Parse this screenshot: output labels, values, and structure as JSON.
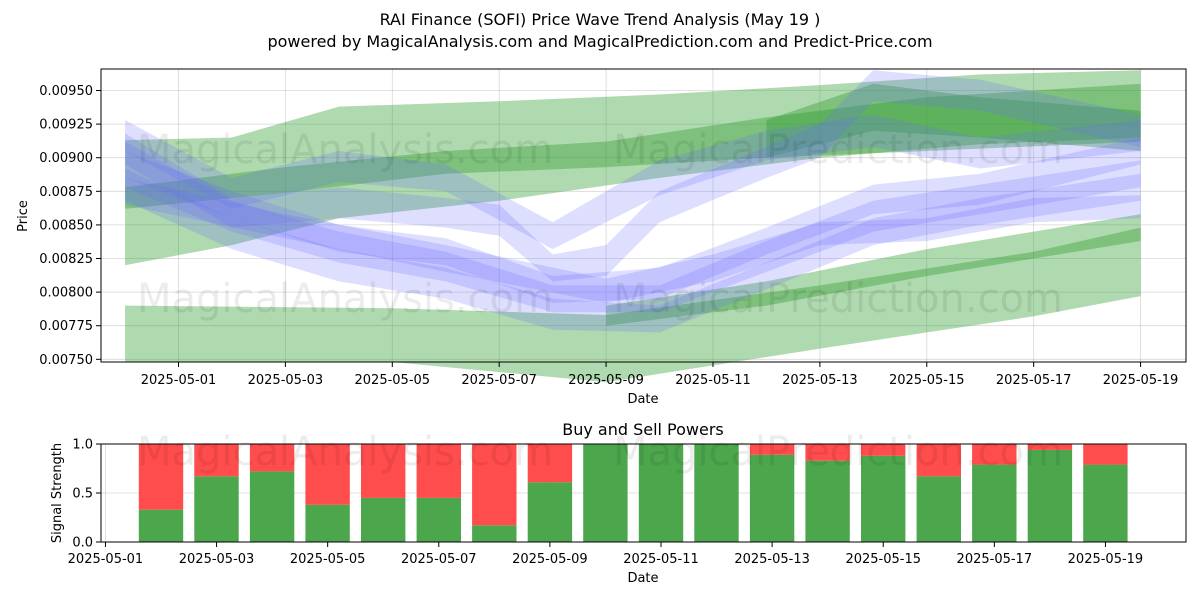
{
  "title_line1": "RAI Finance (SOFI) Price Wave Trend Analysis (May 19 )",
  "title_line2": "powered by MagicalAnalysis.com and MagicalPrediction.com and Predict-Price.com",
  "watermarks": [
    "MagicalAnalysis.com",
    "MagicalPrediction.com"
  ],
  "chart_data": [
    {
      "type": "line",
      "title": "",
      "xlabel": "Date",
      "ylabel": "Price",
      "x_range": [
        "2025-04-29",
        "2025-05-20"
      ],
      "ylim": [
        0.00748,
        0.00966
      ],
      "x_ticks": [
        "2025-05-01",
        "2025-05-03",
        "2025-05-05",
        "2025-05-07",
        "2025-05-09",
        "2025-05-11",
        "2025-05-13",
        "2025-05-15",
        "2025-05-17",
        "2025-05-19"
      ],
      "y_ticks": [
        0.0075,
        0.00775,
        0.008,
        0.00825,
        0.0085,
        0.00875,
        0.009,
        0.00925,
        0.0095
      ],
      "grid": true,
      "green_bands": [
        {
          "x": [
            "2025-04-30",
            "2025-05-02",
            "2025-05-04",
            "2025-05-07",
            "2025-05-10",
            "2025-05-13",
            "2025-05-16",
            "2025-05-19"
          ],
          "upper": [
            0.00913,
            0.00915,
            0.00938,
            0.00942,
            0.00947,
            0.00954,
            0.00962,
            0.00965
          ],
          "lower": [
            0.0082,
            0.00835,
            0.00855,
            0.00868,
            0.00885,
            0.009,
            0.0091,
            0.00915
          ]
        },
        {
          "x": [
            "2025-04-30",
            "2025-05-03",
            "2025-05-06",
            "2025-05-09",
            "2025-05-12",
            "2025-05-15",
            "2025-05-19"
          ],
          "upper": [
            0.00878,
            0.00893,
            0.00905,
            0.00912,
            0.0093,
            0.00945,
            0.00955
          ],
          "lower": [
            0.00862,
            0.00874,
            0.00888,
            0.00893,
            0.009,
            0.00905,
            0.00912
          ]
        },
        {
          "x": [
            "2025-04-30",
            "2025-05-05",
            "2025-05-09",
            "2025-05-13",
            "2025-05-17",
            "2025-05-19"
          ],
          "upper": [
            0.0079,
            0.00788,
            0.00783,
            0.00805,
            0.0083,
            0.00848
          ],
          "lower": [
            0.00748,
            0.00748,
            0.00733,
            0.00758,
            0.00782,
            0.00797
          ]
        },
        {
          "x": [
            "2025-05-09",
            "2025-05-12",
            "2025-05-15",
            "2025-05-19"
          ],
          "upper": [
            0.0079,
            0.00808,
            0.00832,
            0.00858
          ],
          "lower": [
            0.00775,
            0.0079,
            0.00812,
            0.00838
          ]
        },
        {
          "x": [
            "2025-05-12",
            "2025-05-14",
            "2025-05-16",
            "2025-05-19"
          ],
          "upper": [
            0.00928,
            0.00955,
            0.00945,
            0.00935
          ],
          "lower": [
            0.009,
            0.0092,
            0.00915,
            0.00905
          ]
        }
      ],
      "blue_bands": [
        {
          "x": [
            "2025-04-30",
            "2025-05-02",
            "2025-05-04",
            "2025-05-06",
            "2025-05-08",
            "2025-05-10",
            "2025-05-12",
            "2025-05-14",
            "2025-05-16",
            "2025-05-19"
          ],
          "upper": [
            0.00912,
            0.00868,
            0.00845,
            0.0083,
            0.00805,
            0.00805,
            0.00838,
            0.00868,
            0.0088,
            0.00898
          ],
          "lower": [
            0.00878,
            0.00845,
            0.00822,
            0.00808,
            0.00785,
            0.00785,
            0.00815,
            0.00845,
            0.00858,
            0.00878
          ]
        },
        {
          "x": [
            "2025-04-30",
            "2025-05-02",
            "2025-05-04",
            "2025-05-06",
            "2025-05-08",
            "2025-05-10",
            "2025-05-12",
            "2025-05-14",
            "2025-05-16",
            "2025-05-19"
          ],
          "upper": [
            0.00892,
            0.00855,
            0.00832,
            0.00818,
            0.00795,
            0.0079,
            0.00822,
            0.00855,
            0.0087,
            0.00888
          ],
          "lower": [
            0.00868,
            0.00832,
            0.00808,
            0.00795,
            0.00772,
            0.0077,
            0.00802,
            0.00835,
            0.0085,
            0.00868
          ]
        },
        {
          "x": [
            "2025-04-30",
            "2025-05-02",
            "2025-05-04",
            "2025-05-06",
            "2025-05-08",
            "2025-05-10",
            "2025-05-12",
            "2025-05-14",
            "2025-05-16",
            "2025-05-19"
          ],
          "upper": [
            0.00928,
            0.00885,
            0.00905,
            0.00895,
            0.00852,
            0.00898,
            0.0092,
            0.00932,
            0.00915,
            0.00928
          ],
          "lower": [
            0.00905,
            0.00862,
            0.00882,
            0.00875,
            0.00832,
            0.00872,
            0.00898,
            0.00908,
            0.00892,
            0.00905
          ]
        },
        {
          "x": [
            "2025-04-30",
            "2025-05-02",
            "2025-05-04",
            "2025-05-06",
            "2025-05-07",
            "2025-05-08",
            "2025-05-09",
            "2025-05-10",
            "2025-05-12",
            "2025-05-13",
            "2025-05-14",
            "2025-05-16",
            "2025-05-19"
          ],
          "upper": [
            0.00918,
            0.0087,
            0.00878,
            0.0087,
            0.00865,
            0.00828,
            0.00835,
            0.00875,
            0.00908,
            0.00925,
            0.00965,
            0.00958,
            0.00932
          ],
          "lower": [
            0.00895,
            0.00848,
            0.00855,
            0.00848,
            0.00842,
            0.00808,
            0.00812,
            0.00852,
            0.00885,
            0.009,
            0.00942,
            0.00935,
            0.00908
          ]
        },
        {
          "x": [
            "2025-04-30",
            "2025-05-03",
            "2025-05-06",
            "2025-05-09",
            "2025-05-11",
            "2025-05-13",
            "2025-05-15",
            "2025-05-17",
            "2025-05-19"
          ],
          "upper": [
            0.00885,
            0.00858,
            0.00835,
            0.0081,
            0.00828,
            0.00852,
            0.00855,
            0.0087,
            0.00872
          ],
          "lower": [
            0.00865,
            0.0084,
            0.00815,
            0.00792,
            0.00808,
            0.00835,
            0.00838,
            0.00852,
            0.00855
          ]
        },
        {
          "x": [
            "2025-04-30",
            "2025-05-02",
            "2025-05-04",
            "2025-05-06",
            "2025-05-08",
            "2025-05-10",
            "2025-05-12",
            "2025-05-14",
            "2025-05-16",
            "2025-05-19"
          ],
          "upper": [
            0.00905,
            0.00875,
            0.0085,
            0.0084,
            0.00812,
            0.00818,
            0.00848,
            0.0088,
            0.00888,
            0.00915
          ],
          "lower": [
            0.00885,
            0.00855,
            0.0083,
            0.0082,
            0.00792,
            0.00795,
            0.00828,
            0.00858,
            0.00865,
            0.00895
          ]
        }
      ]
    },
    {
      "type": "bar",
      "title": "Buy and Sell Powers",
      "xlabel": "Date",
      "ylabel": "Signal Strength",
      "x_range": [
        "2025-04-30",
        "2025-05-20"
      ],
      "ylim": [
        0,
        1
      ],
      "x_ticks": [
        "2025-05-01",
        "2025-05-03",
        "2025-05-05",
        "2025-05-07",
        "2025-05-09",
        "2025-05-11",
        "2025-05-13",
        "2025-05-15",
        "2025-05-17",
        "2025-05-19"
      ],
      "y_ticks": [
        "0.0",
        "0.5",
        "1.0"
      ],
      "grid": true,
      "categories": [
        "2025-05-02",
        "2025-05-03",
        "2025-05-04",
        "2025-05-05",
        "2025-05-06",
        "2025-05-07",
        "2025-05-08",
        "2025-05-09",
        "2025-05-10",
        "2025-05-11",
        "2025-05-12",
        "2025-05-13",
        "2025-05-14",
        "2025-05-15",
        "2025-05-16",
        "2025-05-17",
        "2025-05-18",
        "2025-05-19"
      ],
      "series": [
        {
          "values": [
            0.33,
            0.67,
            0.72,
            0.38,
            0.45,
            0.45,
            0.17,
            0.61,
            1.0,
            1.0,
            1.0,
            0.89,
            0.83,
            0.88,
            0.67,
            0.79,
            0.94,
            0.79
          ],
          "color": "#4ca64c"
        },
        {
          "values": [
            0.67,
            0.33,
            0.28,
            0.62,
            0.55,
            0.55,
            0.83,
            0.39,
            0.0,
            0.0,
            0.0,
            0.11,
            0.17,
            0.12,
            0.33,
            0.21,
            0.06,
            0.21
          ],
          "color": "#ff4c4c"
        }
      ]
    }
  ]
}
